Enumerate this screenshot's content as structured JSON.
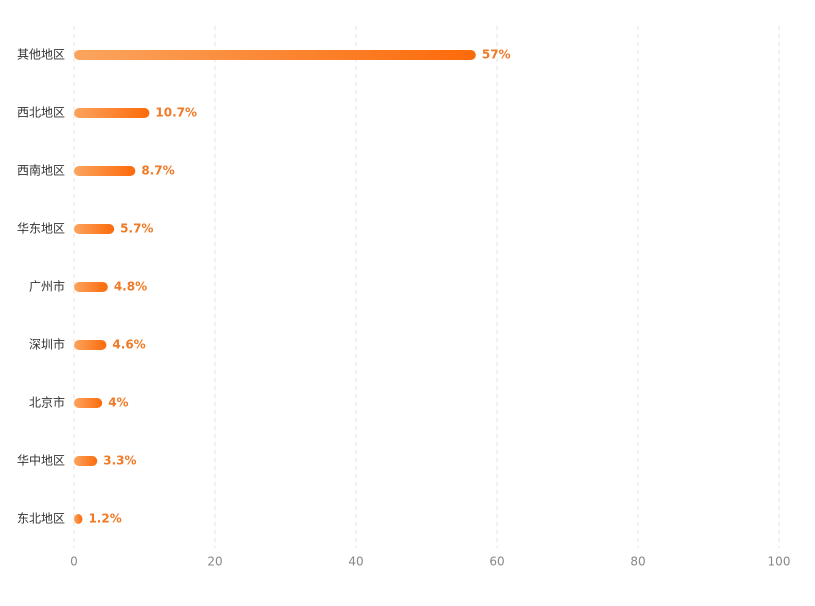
{
  "chart_data": {
    "type": "bar",
    "orientation": "horizontal",
    "categories": [
      "其他地区",
      "西北地区",
      "西南地区",
      "华东地区",
      "广州市",
      "深圳市",
      "北京市",
      "华中地区",
      "东北地区"
    ],
    "values": [
      57,
      10.7,
      8.7,
      5.7,
      4.8,
      4.6,
      4,
      3.3,
      1.2
    ],
    "value_labels": [
      "57%",
      "10.7%",
      "8.7%",
      "5.7%",
      "4.8%",
      "4.6%",
      "4%",
      "3.3%",
      "1.2%"
    ],
    "colors": [
      "#fba45e",
      "#fc6a0a"
    ],
    "xlim": [
      0,
      100
    ],
    "xticks": [
      0,
      20,
      40,
      60,
      80,
      100
    ],
    "grid": true
  }
}
